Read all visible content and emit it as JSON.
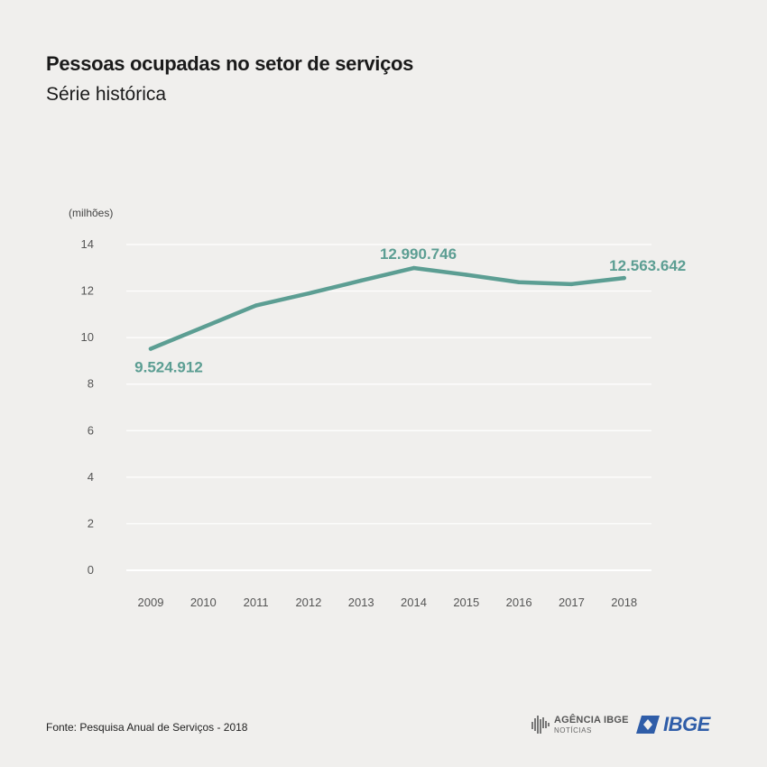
{
  "header": {
    "title": "Pessoas ocupadas no setor de serviços",
    "subtitle": "Série histórica"
  },
  "chart_data": {
    "type": "line",
    "unit_label": "(milhões)",
    "x": [
      "2009",
      "2010",
      "2011",
      "2012",
      "2013",
      "2014",
      "2015",
      "2016",
      "2017",
      "2018"
    ],
    "series": [
      {
        "values": [
          9.52,
          10.45,
          11.38,
          11.9,
          12.45,
          12.99,
          12.7,
          12.38,
          12.3,
          12.56
        ]
      }
    ],
    "annotations": [
      {
        "x": "2009",
        "label": "9.524.912"
      },
      {
        "x": "2014",
        "label": "12.990.746"
      },
      {
        "x": "2018",
        "label": "12.563.642"
      }
    ],
    "ylim": [
      0,
      14
    ],
    "yticks": [
      0,
      2,
      4,
      6,
      8,
      10,
      12,
      14
    ],
    "grid": true,
    "line_color": "#5c9e93"
  },
  "footer": {
    "source": "Fonte: Pesquisa Anual de Serviços - 2018",
    "agencia_line1": "AGÊNCIA IBGE",
    "agencia_line2": "NOTÍCIAS",
    "ibge": "IBGE"
  }
}
